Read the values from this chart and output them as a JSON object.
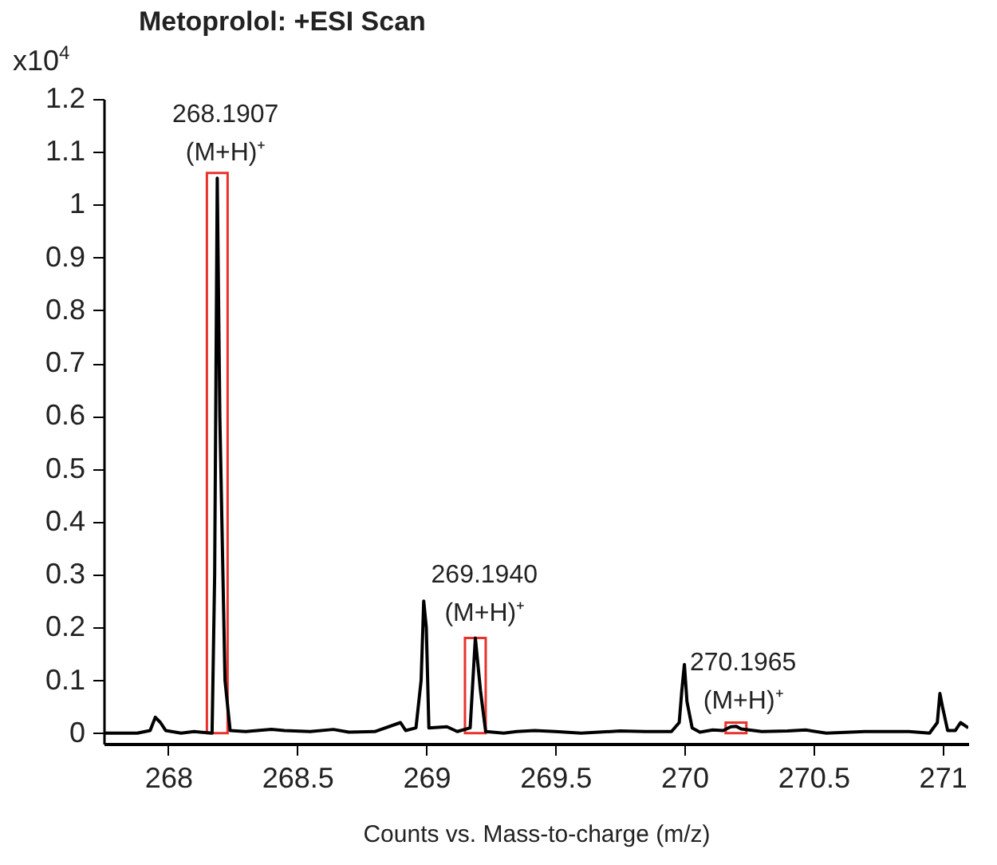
{
  "chart_data": {
    "type": "line",
    "title": "Metoprolol: +ESI Scan",
    "xlabel": "Counts vs. Mass-to-charge (m/z)",
    "ylabel": "x10$^{4}$",
    "x": [
      267.75,
      267.88,
      267.93,
      267.95,
      267.97,
      267.99,
      268.05,
      268.1,
      268.17,
      268.18,
      268.19,
      268.2,
      268.22,
      268.24,
      268.3,
      268.4,
      268.45,
      268.55,
      268.64,
      268.7,
      268.8,
      268.9,
      268.92,
      268.96,
      268.98,
      268.99,
      269.0,
      269.01,
      269.08,
      269.12,
      269.17,
      269.19,
      269.21,
      269.23,
      269.3,
      269.35,
      269.42,
      269.5,
      269.6,
      269.75,
      269.85,
      269.95,
      269.98,
      269.99,
      270.0,
      270.01,
      270.03,
      270.06,
      270.11,
      270.15,
      270.18,
      270.2,
      270.22,
      270.3,
      270.4,
      270.47,
      270.55,
      270.7,
      270.87,
      270.95,
      270.98,
      270.99,
      271.0,
      271.02,
      271.05,
      271.07,
      271.1
    ],
    "series": [
      {
        "type": "bar",
        "color": "#e8322b",
        "x": [
          268.19,
          269.19,
          270.2
        ],
        "values": [
          1.06,
          0.18,
          0.02
        ]
      },
      {
        "color": "#000000",
        "values": [
          0,
          0,
          0.005,
          0.03,
          0.02,
          0.005,
          0,
          0.003,
          0,
          0.3,
          1.05,
          0.6,
          0.1,
          0.005,
          0.003,
          0.007,
          0.005,
          0.003,
          0.007,
          0.002,
          0.003,
          0.02,
          0.005,
          0.01,
          0.1,
          0.25,
          0.2,
          0.01,
          0.012,
          0.003,
          0.01,
          0.18,
          0.08,
          0.003,
          0,
          0.003,
          0.005,
          0.003,
          0,
          0.004,
          0.003,
          0.003,
          0.02,
          0.08,
          0.13,
          0.06,
          0.01,
          0.002,
          0.006,
          0.005,
          0.012,
          0.013,
          0.008,
          0.003,
          0.004,
          0.006,
          0,
          0.003,
          0.003,
          0,
          0.02,
          0.075,
          0.05,
          0.005,
          0.005,
          0.02,
          0.01
        ]
      }
    ],
    "xlim": [
      267.75,
      271.1
    ],
    "xticks": [
      268,
      268.5,
      269,
      269.5,
      270,
      270.5,
      271
    ],
    "ylim": [
      -0.02,
      1.2
    ],
    "yticks": [
      0,
      0.1,
      0.2,
      0.3,
      0.4,
      0.5,
      0.6,
      0.7,
      0.8,
      0.9,
      1,
      1.1,
      1.2
    ],
    "annotations": [
      {
        "text": "268.1907\n(M+H)⁺",
        "x": 268.1907,
        "y": 1.05
      },
      {
        "text": "269.1940\n(M+H)⁺",
        "x": 269.194,
        "y": 0.18
      },
      {
        "text": "270.1965\n(M+H)⁺",
        "x": 270.1965,
        "y": 0.013
      }
    ]
  }
}
